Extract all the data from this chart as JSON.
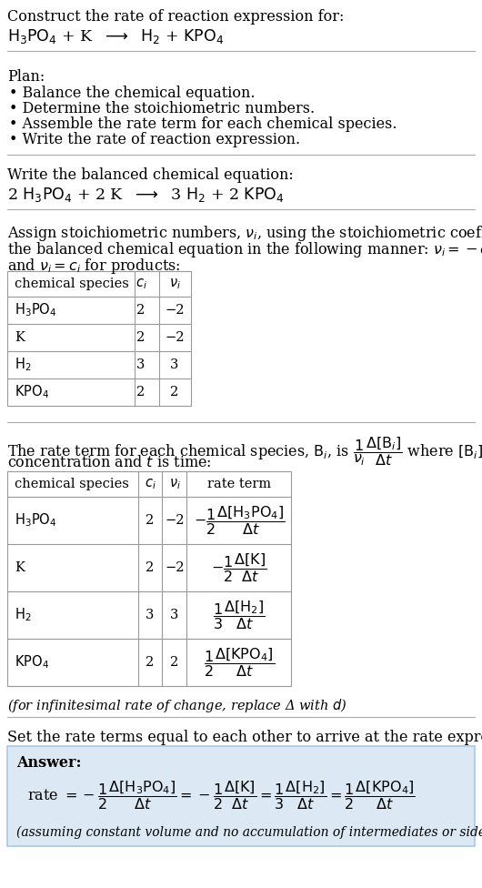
{
  "bg_color": "#ffffff",
  "text_color": "#000000",
  "answer_box_color": "#dce9f5",
  "answer_box_edge": "#a8c8e8",
  "title_line1": "Construct the rate of reaction expression for:",
  "plan_header": "Plan:",
  "plan_items": [
    "• Balance the chemical equation.",
    "• Determine the stoichiometric numbers.",
    "• Assemble the rate term for each chemical species.",
    "• Write the rate of reaction expression."
  ],
  "balanced_header": "Write the balanced chemical equation:",
  "stoich_header_line1": "Assign stoichiometric numbers, $\\nu_i$, using the stoichiometric coefficients, $c_i$, from",
  "stoich_header_line2": "the balanced chemical equation in the following manner: $\\nu_i = -c_i$ for reactants",
  "stoich_header_line3": "and $\\nu_i = c_i$ for products:",
  "table1_headers": [
    "chemical species",
    "$c_i$",
    "$\\nu_i$"
  ],
  "table1_rows": [
    [
      "$\\mathrm{H_3PO_4}$",
      "2",
      "−2"
    ],
    [
      "K",
      "2",
      "−2"
    ],
    [
      "$\\mathrm{H_2}$",
      "3",
      "3"
    ],
    [
      "$\\mathrm{KPO_4}$",
      "2",
      "2"
    ]
  ],
  "rate_header_line1": "The rate term for each chemical species, $\\mathrm{B}_i$, is $\\dfrac{1}{\\nu_i}\\dfrac{\\Delta[\\mathrm{B}_i]}{\\Delta t}$ where $[\\mathrm{B}_i]$ is the amount",
  "rate_header_line2": "concentration and $t$ is time:",
  "table2_headers": [
    "chemical species",
    "$c_i$",
    "$\\nu_i$",
    "rate term"
  ],
  "table2_rows": [
    [
      "$\\mathrm{H_3PO_4}$",
      "2",
      "−2",
      "$-\\dfrac{1}{2}\\dfrac{\\Delta[\\mathrm{H_3PO_4}]}{\\Delta t}$"
    ],
    [
      "K",
      "2",
      "−2",
      "$-\\dfrac{1}{2}\\dfrac{\\Delta[\\mathrm{K}]}{\\Delta t}$"
    ],
    [
      "$\\mathrm{H_2}$",
      "3",
      "3",
      "$\\dfrac{1}{3}\\dfrac{\\Delta[\\mathrm{H_2}]}{\\Delta t}$"
    ],
    [
      "$\\mathrm{KPO_4}$",
      "2",
      "2",
      "$\\dfrac{1}{2}\\dfrac{\\Delta[\\mathrm{KPO_4}]}{\\Delta t}$"
    ]
  ],
  "infinitesimal_note": "(for infinitesimal rate of change, replace Δ with $d$)",
  "set_equal_header": "Set the rate terms equal to each other to arrive at the rate expression:",
  "answer_label": "Answer:",
  "answer_note": "(assuming constant volume and no accumulation of intermediates or side products)",
  "fs": 11.5,
  "fst": 10.5,
  "line_color": "#aaaaaa"
}
